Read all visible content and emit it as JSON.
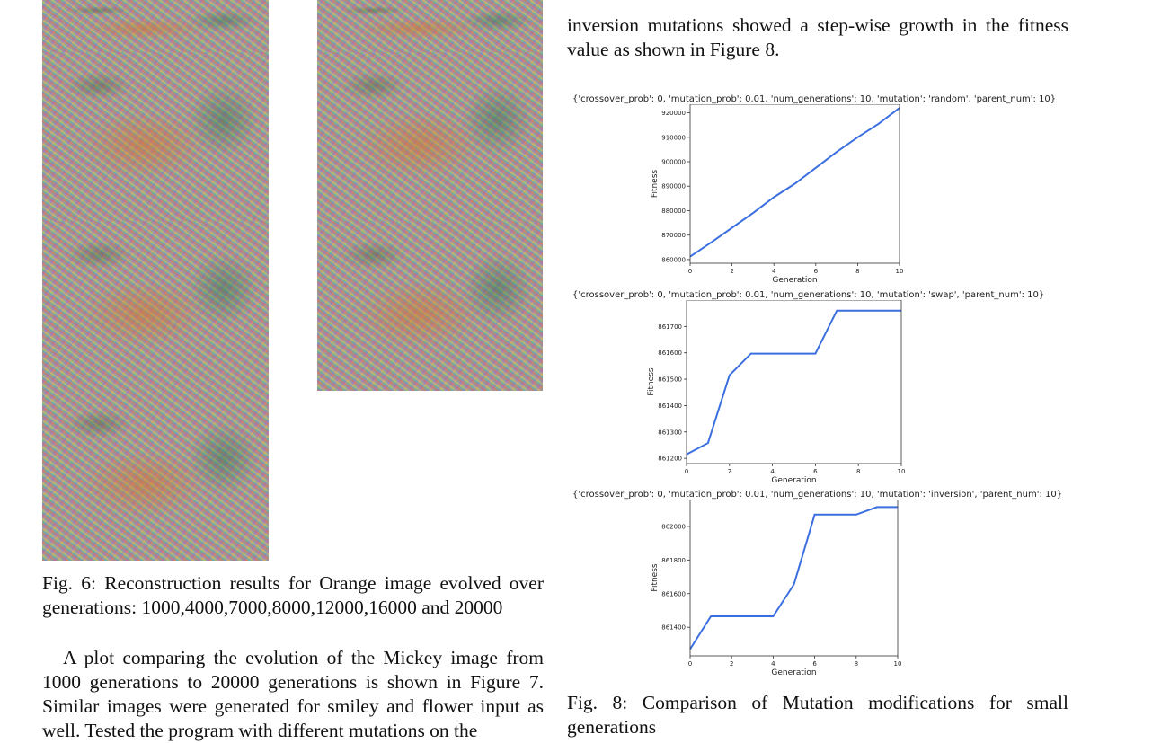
{
  "left_column": {
    "fig6_caption": "Fig. 6: Reconstruction results for Orange image evolved over generations: 1000,4000,7000,8000,12000,16000 and 20000",
    "paragraph": "A plot comparing the evolution of the Mickey image from 1000 generations to 20000 generations is shown in Figure 7. Similar images were generated for smiley and flower input as well. Tested the program with different mutations on the"
  },
  "right_column": {
    "intro_text": "inversion mutations showed a step-wise growth in the fitness value as shown in Figure 8.",
    "fig8_caption": "Fig. 8: Comparison of Mutation modifications for small generations"
  },
  "chart_data": [
    {
      "type": "line",
      "title": "{'crossover_prob': 0, 'mutation_prob': 0.01, 'num_generations': 10, 'mutation': 'random', 'parent_num': 10}",
      "xlabel": "Generation",
      "ylabel": "Fitness",
      "x": [
        0,
        1,
        2,
        3,
        4,
        5,
        6,
        7,
        8,
        9,
        10
      ],
      "values": [
        861200,
        867000,
        873000,
        879000,
        885500,
        891000,
        897500,
        904000,
        910000,
        915500,
        922000
      ],
      "xlim": [
        0,
        10
      ],
      "ylim": [
        858500,
        923500
      ],
      "xticks": [
        "0",
        "2",
        "4",
        "6",
        "8",
        "10"
      ],
      "yticks": [
        "860000",
        "870000",
        "880000",
        "890000",
        "900000",
        "910000",
        "920000"
      ],
      "color": "#3b6fe0"
    },
    {
      "type": "line",
      "title": "{'crossover_prob': 0, 'mutation_prob': 0.01, 'num_generations': 10, 'mutation': 'swap', 'parent_num': 10}",
      "xlabel": "Generation",
      "ylabel": "Fitness",
      "x": [
        0,
        1,
        2,
        3,
        4,
        5,
        6,
        7,
        8,
        9,
        10
      ],
      "values": [
        861215,
        861258,
        861515,
        861597,
        861597,
        861597,
        861597,
        861760,
        861760,
        861760,
        861760
      ],
      "xlim": [
        0,
        10
      ],
      "ylim": [
        861180,
        861800
      ],
      "xticks": [
        "0",
        "2",
        "4",
        "6",
        "8",
        "10"
      ],
      "yticks": [
        "861200",
        "861300",
        "861400",
        "861500",
        "861600",
        "861700"
      ],
      "color": "#3b6fe0"
    },
    {
      "type": "line",
      "title": "{'crossover_prob': 0, 'mutation_prob': 0.01, 'num_generations': 10, 'mutation': 'inversion', 'parent_num': 10}",
      "xlabel": "Generation",
      "ylabel": "Fitness",
      "x": [
        0,
        1,
        2,
        3,
        4,
        5,
        6,
        7,
        8,
        9,
        10
      ],
      "values": [
        861270,
        861465,
        861465,
        861465,
        861465,
        861655,
        862070,
        862070,
        862070,
        862115,
        862115
      ],
      "xlim": [
        0,
        10
      ],
      "ylim": [
        861230,
        862160
      ],
      "xticks": [
        "0",
        "2",
        "4",
        "6",
        "8",
        "10"
      ],
      "yticks": [
        "861400",
        "861600",
        "861800",
        "862000"
      ],
      "color": "#3b6fe0"
    }
  ]
}
